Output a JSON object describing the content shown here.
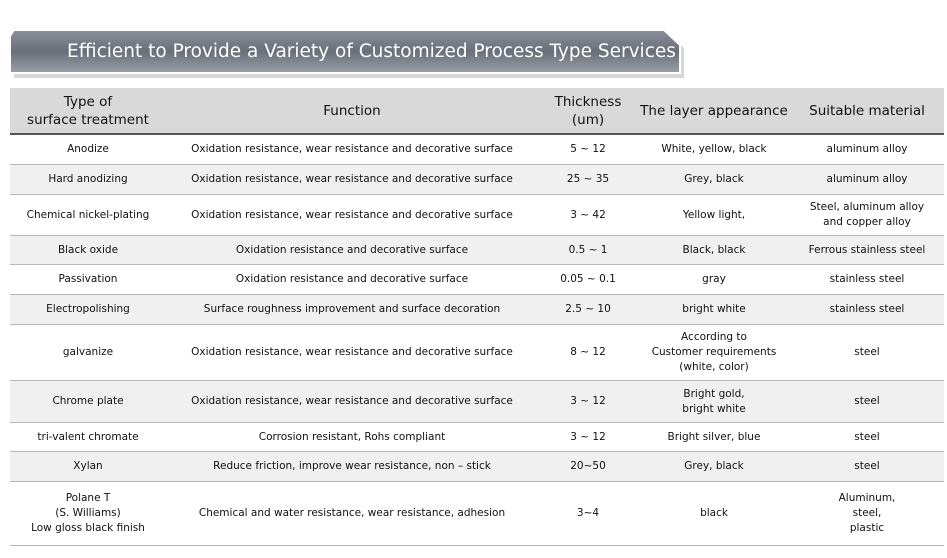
{
  "banner": {
    "title": "Efficient to Provide a Variety of Customized Process Type Services"
  },
  "table": {
    "header": [
      [
        "Type of",
        "surface treatment"
      ],
      [
        "Function"
      ],
      [
        "Thickness",
        "(um)"
      ],
      [
        "The layer appearance"
      ],
      [
        "Suitable material"
      ]
    ],
    "rows": [
      [
        [
          "Anodize"
        ],
        [
          "Oxidation resistance, wear resistance and decorative surface"
        ],
        [
          "5 ~ 12"
        ],
        [
          "White, yellow, black"
        ],
        [
          "aluminum alloy"
        ]
      ],
      [
        [
          "Hard anodizing"
        ],
        [
          "Oxidation resistance, wear resistance and decorative surface"
        ],
        [
          "25 ~ 35"
        ],
        [
          "Grey, black"
        ],
        [
          "aluminum alloy"
        ]
      ],
      [
        [
          "Chemical nickel-plating"
        ],
        [
          "Oxidation resistance, wear resistance and decorative surface"
        ],
        [
          "3 ~ 42"
        ],
        [
          "Yellow light,"
        ],
        [
          "Steel, aluminum alloy",
          "and copper alloy"
        ]
      ],
      [
        [
          "Black oxide"
        ],
        [
          "Oxidation resistance and decorative surface"
        ],
        [
          "0.5 ~ 1"
        ],
        [
          "Black, black"
        ],
        [
          "Ferrous stainless steel"
        ]
      ],
      [
        [
          "Passivation"
        ],
        [
          "Oxidation resistance and decorative surface"
        ],
        [
          "0.05 ~ 0.1"
        ],
        [
          "gray"
        ],
        [
          "stainless steel"
        ]
      ],
      [
        [
          "Electropolishing"
        ],
        [
          "Surface roughness improvement and surface decoration"
        ],
        [
          "2.5 ~ 10"
        ],
        [
          "bright white"
        ],
        [
          "stainless steel"
        ]
      ],
      [
        [
          "galvanize"
        ],
        [
          "Oxidation resistance, wear resistance and decorative surface"
        ],
        [
          "8 ~ 12"
        ],
        [
          "According to",
          "Customer requirements",
          "(white, color)"
        ],
        [
          "steel"
        ]
      ],
      [
        [
          "Chrome plate"
        ],
        [
          "Oxidation resistance, wear resistance and decorative surface"
        ],
        [
          "3 ~ 12"
        ],
        [
          "Bright gold,",
          "bright white"
        ],
        [
          "steel"
        ]
      ],
      [
        [
          "tri-valent chromate"
        ],
        [
          "Corrosion resistant, Rohs compliant"
        ],
        [
          "3 ~ 12"
        ],
        [
          "Bright silver, blue"
        ],
        [
          "steel"
        ]
      ],
      [
        [
          "Xylan"
        ],
        [
          "Reduce friction, improve wear resistance, non – stick"
        ],
        [
          "20~50"
        ],
        [
          "Grey, black"
        ],
        [
          "steel"
        ]
      ],
      [
        [
          "Polane T",
          "(S. Williams)",
          "Low gloss black finish"
        ],
        [
          "Chemical and water resistance, wear resistance, adhesion"
        ],
        [
          "3~4"
        ],
        [
          "black"
        ],
        [
          "Aluminum,",
          "steel,",
          "plastic"
        ]
      ]
    ]
  }
}
